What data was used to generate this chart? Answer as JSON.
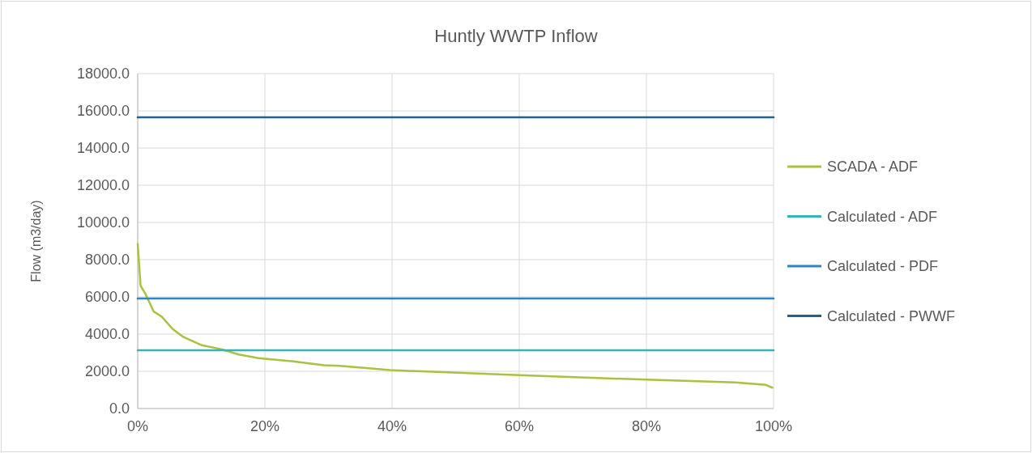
{
  "chart_data": {
    "type": "line",
    "title": "Huntly WWTP Inflow",
    "ylabel": "Flow (m3/day)",
    "xlim": [
      0,
      100
    ],
    "xticks": [
      {
        "value": 0,
        "label": "0%"
      },
      {
        "value": 20,
        "label": "20%"
      },
      {
        "value": 40,
        "label": "40%"
      },
      {
        "value": 60,
        "label": "60%"
      },
      {
        "value": 80,
        "label": "80%"
      },
      {
        "value": 100,
        "label": "100%"
      }
    ],
    "ylim": [
      0,
      18000
    ],
    "yticks": [
      {
        "value": 0,
        "label": "0.0"
      },
      {
        "value": 2000,
        "label": "2000.0"
      },
      {
        "value": 4000,
        "label": "4000.0"
      },
      {
        "value": 6000,
        "label": "6000.0"
      },
      {
        "value": 8000,
        "label": "8000.0"
      },
      {
        "value": 10000,
        "label": "10000.0"
      },
      {
        "value": 12000,
        "label": "12000.0"
      },
      {
        "value": 14000,
        "label": "14000.0"
      },
      {
        "value": 16000,
        "label": "16000.0"
      },
      {
        "value": 18000,
        "label": "18000.0"
      }
    ],
    "grid": true,
    "legend": "right",
    "marker": "none",
    "line_style": "solid",
    "series": [
      {
        "name": "SCADA - ADF",
        "color": "#a9c23f",
        "x": [
          0,
          0.45,
          1.2,
          2.5,
          3.8,
          5.5,
          7.2,
          10.1,
          13.1,
          15.9,
          19,
          24.2,
          29.3,
          31.8,
          39.7,
          60,
          80,
          94,
          98.8,
          99.8
        ],
        "values": [
          8850,
          6600,
          6170,
          5220,
          4930,
          4270,
          3840,
          3400,
          3190,
          2900,
          2710,
          2540,
          2330,
          2290,
          2065,
          1790,
          1550,
          1400,
          1270,
          1120
        ]
      },
      {
        "name": "Calculated - ADF",
        "color": "#34b3b8",
        "x": [
          0,
          100
        ],
        "values": [
          3130,
          3130
        ]
      },
      {
        "name": "Calculated - PDF",
        "color": "#2e86c9",
        "x": [
          0,
          100
        ],
        "values": [
          5910,
          5910
        ]
      },
      {
        "name": "Calculated - PWWF",
        "color": "#1f6390",
        "x": [
          0,
          100
        ],
        "values": [
          15650,
          15650
        ]
      }
    ]
  }
}
